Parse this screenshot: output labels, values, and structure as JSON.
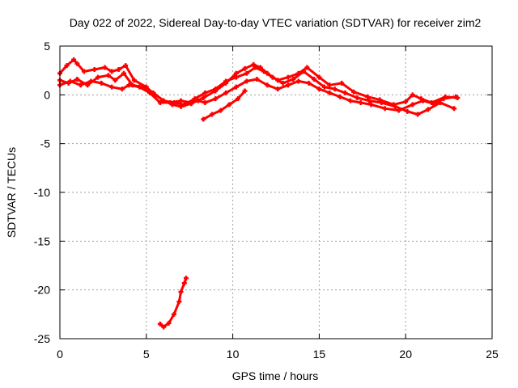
{
  "chart_data": {
    "type": "scatter",
    "title": "Day 022 of 2022, Sidereal Day-to-day VTEC variation (SDTVAR) for receiver zim2",
    "xlabel": "GPS time / hours",
    "ylabel": "SDTVAR / TECUs",
    "xlim": [
      0,
      25
    ],
    "ylim": [
      -25,
      5
    ],
    "xticks": [
      "0",
      "5",
      "10",
      "15",
      "20",
      "25"
    ],
    "yticks": [
      "5",
      "0",
      "-5",
      "-10",
      "-15",
      "-20",
      "-25"
    ],
    "grid": true,
    "legend": "none",
    "series_color": "#ff0000",
    "series": [
      {
        "name": "track-a",
        "x": [
          0.0,
          0.4,
          0.8,
          1.0,
          1.4,
          2.0,
          2.6,
          3.0,
          3.4,
          3.8,
          4.3,
          5.0,
          5.5,
          6.0,
          6.5,
          7.0,
          7.6,
          8.3,
          9.0,
          9.6,
          10.2,
          10.7,
          11.2,
          11.6,
          12.0,
          12.6,
          13.2,
          13.8,
          14.3,
          15.0,
          15.6,
          16.3,
          17.0,
          17.8,
          18.5,
          19.3,
          20.0,
          20.4,
          20.9,
          21.5,
          22.3,
          23.0
        ],
        "y": [
          2.2,
          3.0,
          3.6,
          3.2,
          2.4,
          2.6,
          2.8,
          2.4,
          2.6,
          3.0,
          1.5,
          0.8,
          0.0,
          -0.6,
          -1.0,
          -1.2,
          -0.9,
          -0.3,
          0.4,
          1.2,
          2.2,
          2.7,
          3.1,
          2.8,
          2.2,
          1.5,
          1.8,
          2.2,
          2.8,
          1.8,
          1.0,
          1.2,
          0.3,
          -0.2,
          -0.5,
          -1.0,
          -0.7,
          0.0,
          -0.4,
          -0.8,
          -0.2,
          -0.3
        ]
      },
      {
        "name": "track-b",
        "x": [
          0.0,
          0.5,
          1.0,
          1.6,
          2.2,
          2.8,
          3.2,
          3.7,
          4.2,
          4.8,
          5.4,
          6.0,
          6.6,
          7.2,
          7.8,
          8.4,
          9.0,
          9.6,
          10.2,
          10.8,
          11.3,
          11.8,
          12.3,
          12.9,
          13.5,
          14.1,
          14.7,
          15.3,
          15.9,
          16.5,
          17.2,
          17.9,
          18.6,
          19.4,
          20.1,
          20.7,
          21.3,
          22.0,
          22.8
        ],
        "y": [
          1.5,
          1.2,
          1.6,
          1.0,
          1.8,
          2.0,
          1.5,
          2.2,
          1.0,
          0.8,
          0.2,
          -0.6,
          -0.8,
          -1.0,
          -0.4,
          0.2,
          0.6,
          1.4,
          1.8,
          2.2,
          2.8,
          2.4,
          1.8,
          1.2,
          1.6,
          2.4,
          1.6,
          0.8,
          0.6,
          0.2,
          -0.3,
          -0.6,
          -0.8,
          -1.2,
          -1.7,
          -2.0,
          -1.5,
          -0.8,
          -1.4
        ]
      },
      {
        "name": "track-c",
        "x": [
          0.0,
          0.6,
          1.2,
          1.8,
          2.4,
          3.0,
          3.6,
          4.0,
          4.6,
          5.2,
          5.8,
          6.4,
          7.0,
          7.6,
          8.0,
          8.4,
          9.0,
          9.6,
          10.2,
          10.8,
          11.4,
          12.0,
          12.6,
          13.2,
          13.8,
          14.4,
          15.0,
          15.6,
          16.2,
          16.8,
          17.4,
          18.0,
          18.8,
          19.6,
          20.4,
          21.0,
          21.6,
          22.2,
          22.9
        ],
        "y": [
          1.0,
          1.4,
          1.0,
          1.4,
          1.2,
          0.8,
          0.6,
          1.0,
          0.8,
          0.2,
          -0.8,
          -0.8,
          -0.6,
          -0.8,
          -0.6,
          -0.8,
          -0.4,
          0.2,
          0.8,
          1.4,
          1.6,
          1.0,
          0.6,
          1.0,
          1.4,
          1.2,
          0.6,
          0.2,
          -0.2,
          -0.6,
          -0.8,
          -1.0,
          -1.4,
          -1.6,
          -1.0,
          -0.6,
          -0.9,
          -0.4,
          -0.2
        ]
      },
      {
        "name": "track-d",
        "x": [
          8.3,
          8.8,
          9.3,
          9.8,
          10.3,
          10.7
        ],
        "y": [
          -2.5,
          -2.0,
          -1.6,
          -1.0,
          -0.4,
          0.4
        ]
      },
      {
        "name": "track-e",
        "x": [
          5.8,
          6.0,
          6.3,
          6.6,
          6.9,
          7.0,
          7.2,
          7.3
        ],
        "y": [
          -23.5,
          -23.8,
          -23.4,
          -22.5,
          -21.2,
          -20.2,
          -19.3,
          -18.8
        ]
      }
    ]
  }
}
